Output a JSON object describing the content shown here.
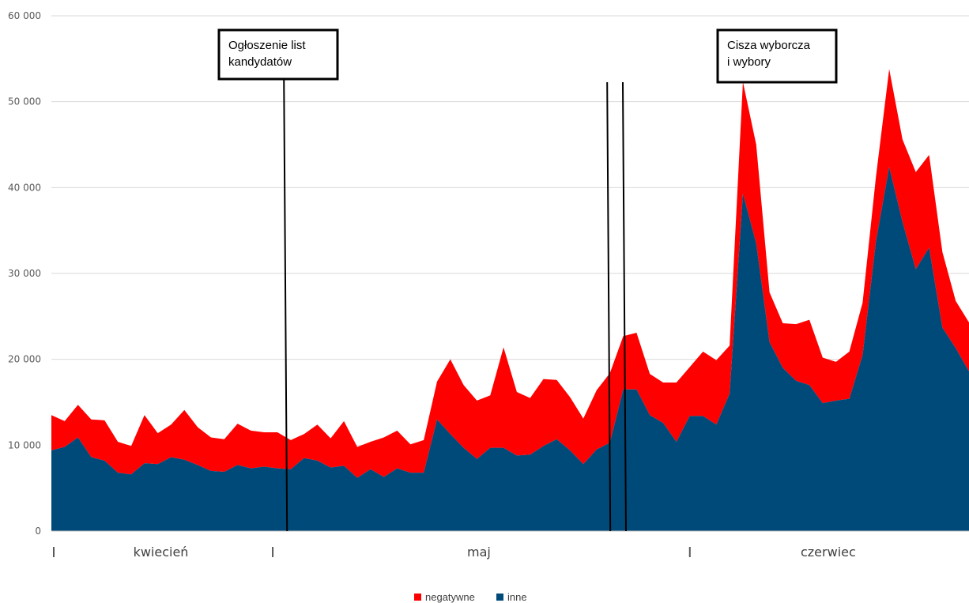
{
  "chart_data": {
    "type": "area",
    "stacked": true,
    "ylim": [
      0,
      60000
    ],
    "yticks": [
      0,
      10000,
      20000,
      30000,
      40000,
      50000,
      60000
    ],
    "ytick_labels": [
      "0",
      "10 000",
      "20 000",
      "30 000",
      "40 000",
      "50 000",
      "60 000"
    ],
    "grid": true,
    "legend_position": "bottom",
    "day_count": 88,
    "months": [
      {
        "label": "kwiecień",
        "start_day": 0
      },
      {
        "label": "maj",
        "start_day": 21
      },
      {
        "label": "czerwiec",
        "start_day": 61
      }
    ],
    "series": [
      {
        "name": "inne",
        "color": "#004a7a",
        "values": [
          9400,
          9800,
          10900,
          8600,
          8200,
          6800,
          6600,
          7900,
          7800,
          8600,
          8300,
          7700,
          7000,
          6900,
          7700,
          7300,
          7500,
          7300,
          7200,
          8500,
          8200,
          7400,
          7600,
          6200,
          7200,
          6300,
          7300,
          6800,
          6800,
          13000,
          11300,
          9700,
          8400,
          9700,
          9700,
          8800,
          8900,
          9900,
          10700,
          9400,
          7800,
          9500,
          10300,
          16500,
          16500,
          13500,
          12600,
          10400,
          13400,
          13400,
          12400,
          16000,
          39300,
          33500,
          22000,
          19000,
          17500,
          17000,
          14900,
          15200,
          15400,
          20500,
          33700,
          42400,
          36000,
          30500,
          33000,
          23700,
          21300,
          18600
        ]
      },
      {
        "name": "negatywne",
        "color": "#ff0000",
        "values": [
          4100,
          3000,
          3800,
          4400,
          4700,
          3600,
          3300,
          5600,
          3600,
          3800,
          5800,
          4400,
          3900,
          3800,
          4800,
          4400,
          4000,
          4200,
          3400,
          2800,
          4200,
          3400,
          5200,
          3600,
          3200,
          4600,
          4400,
          3300,
          3800,
          4400,
          8700,
          7300,
          6800,
          6100,
          11700,
          7400,
          6600,
          7800,
          6900,
          6200,
          5300,
          6900,
          8100,
          6200,
          6600,
          4800,
          4700,
          6900,
          5700,
          7500,
          7500,
          5600,
          13000,
          11500,
          5800,
          5200,
          6600,
          7600,
          5300,
          4500,
          5500,
          6100,
          7500,
          11400,
          9600,
          11300,
          10800,
          8800,
          5500,
          5700
        ]
      }
    ],
    "annotations": [
      {
        "text_lines": [
          "Ogłoszenie list",
          "kandydatów"
        ],
        "day": 22.3
      },
      {
        "text_lines": [
          "Cisza wyborcza",
          "i wybory"
        ],
        "day": 53.3,
        "day2": 54.8
      }
    ],
    "legend": [
      {
        "label": "negatywne",
        "color": "#ff0000"
      },
      {
        "label": "inne",
        "color": "#004a7a"
      }
    ]
  }
}
